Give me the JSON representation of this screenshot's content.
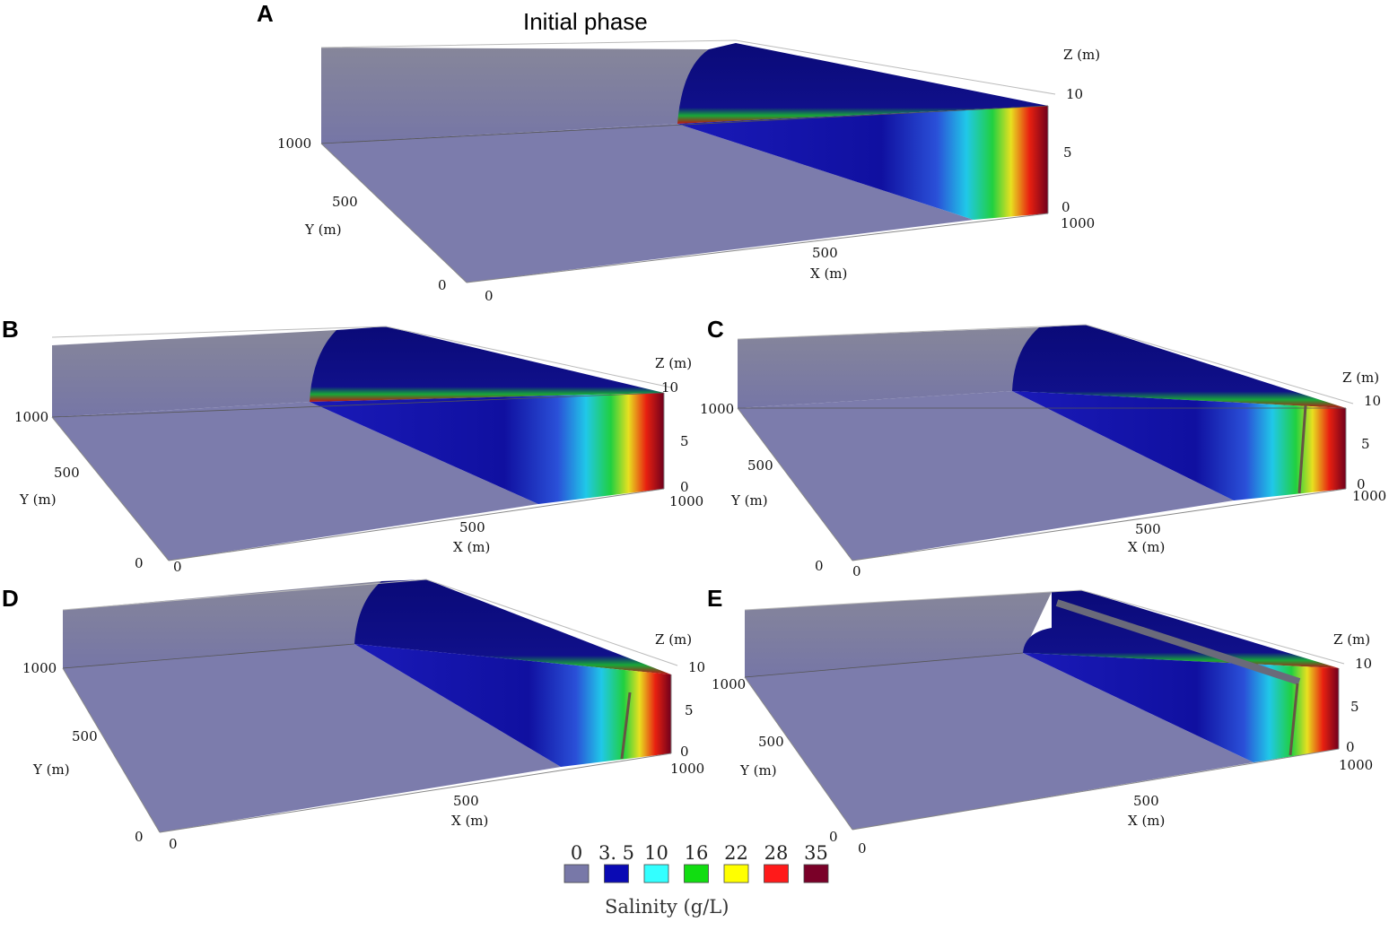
{
  "panel_A": {
    "letter": "A",
    "title": "Initial phase",
    "z_label": "Z (m)",
    "z_ticks": [
      "10",
      "5",
      "0"
    ],
    "y_label": "Y (m)",
    "y_ticks": [
      "1000",
      "500",
      "0"
    ],
    "x_label": "X (m)",
    "x_ticks": [
      "0",
      "500",
      "1000"
    ]
  },
  "panel_B": {
    "letter": "B",
    "z_label": "Z (m)",
    "z_ticks": [
      "10",
      "5",
      "0"
    ],
    "y_label": "Y (m)",
    "y_ticks": [
      "1000",
      "500",
      "0"
    ],
    "x_label": "X (m)",
    "x_ticks": [
      "0",
      "500",
      "1000"
    ]
  },
  "panel_C": {
    "letter": "C",
    "z_label": "Z (m)",
    "z_ticks": [
      "10",
      "5",
      "0"
    ],
    "y_label": "Y (m)",
    "y_ticks": [
      "1000",
      "500",
      "0"
    ],
    "x_label": "X (m)",
    "x_ticks": [
      "0",
      "500",
      "1000"
    ]
  },
  "panel_D": {
    "letter": "D",
    "z_label": "Z (m)",
    "z_ticks": [
      "10",
      "5",
      "0"
    ],
    "y_label": "Y (m)",
    "y_ticks": [
      "1000",
      "500",
      "0"
    ],
    "x_label": "X (m)",
    "x_ticks": [
      "0",
      "500",
      "1000"
    ]
  },
  "panel_E": {
    "letter": "E",
    "z_label": "Z (m)",
    "z_ticks": [
      "10",
      "5",
      "0"
    ],
    "y_label": "Y (m)",
    "y_ticks": [
      "1000",
      "500",
      "0"
    ],
    "x_label": "X (m)",
    "x_ticks": [
      "0",
      "500",
      "1000"
    ]
  },
  "legend": {
    "title": "Salinity (g/L)",
    "items": [
      {
        "label": "0",
        "color": "#7878a8"
      },
      {
        "label": "3. 5",
        "color": "#0a0ab4"
      },
      {
        "label": "10",
        "color": "#33ffff"
      },
      {
        "label": "16",
        "color": "#11dd11"
      },
      {
        "label": "22",
        "color": "#ffff00"
      },
      {
        "label": "28",
        "color": "#ff1a1a"
      },
      {
        "label": "35",
        "color": "#7a0028"
      }
    ]
  },
  "colors": {
    "freshwater": "#7878a8",
    "wedge_dark": "#141470",
    "wedge_mid": "#1414b0",
    "saline": "#7a0028"
  }
}
